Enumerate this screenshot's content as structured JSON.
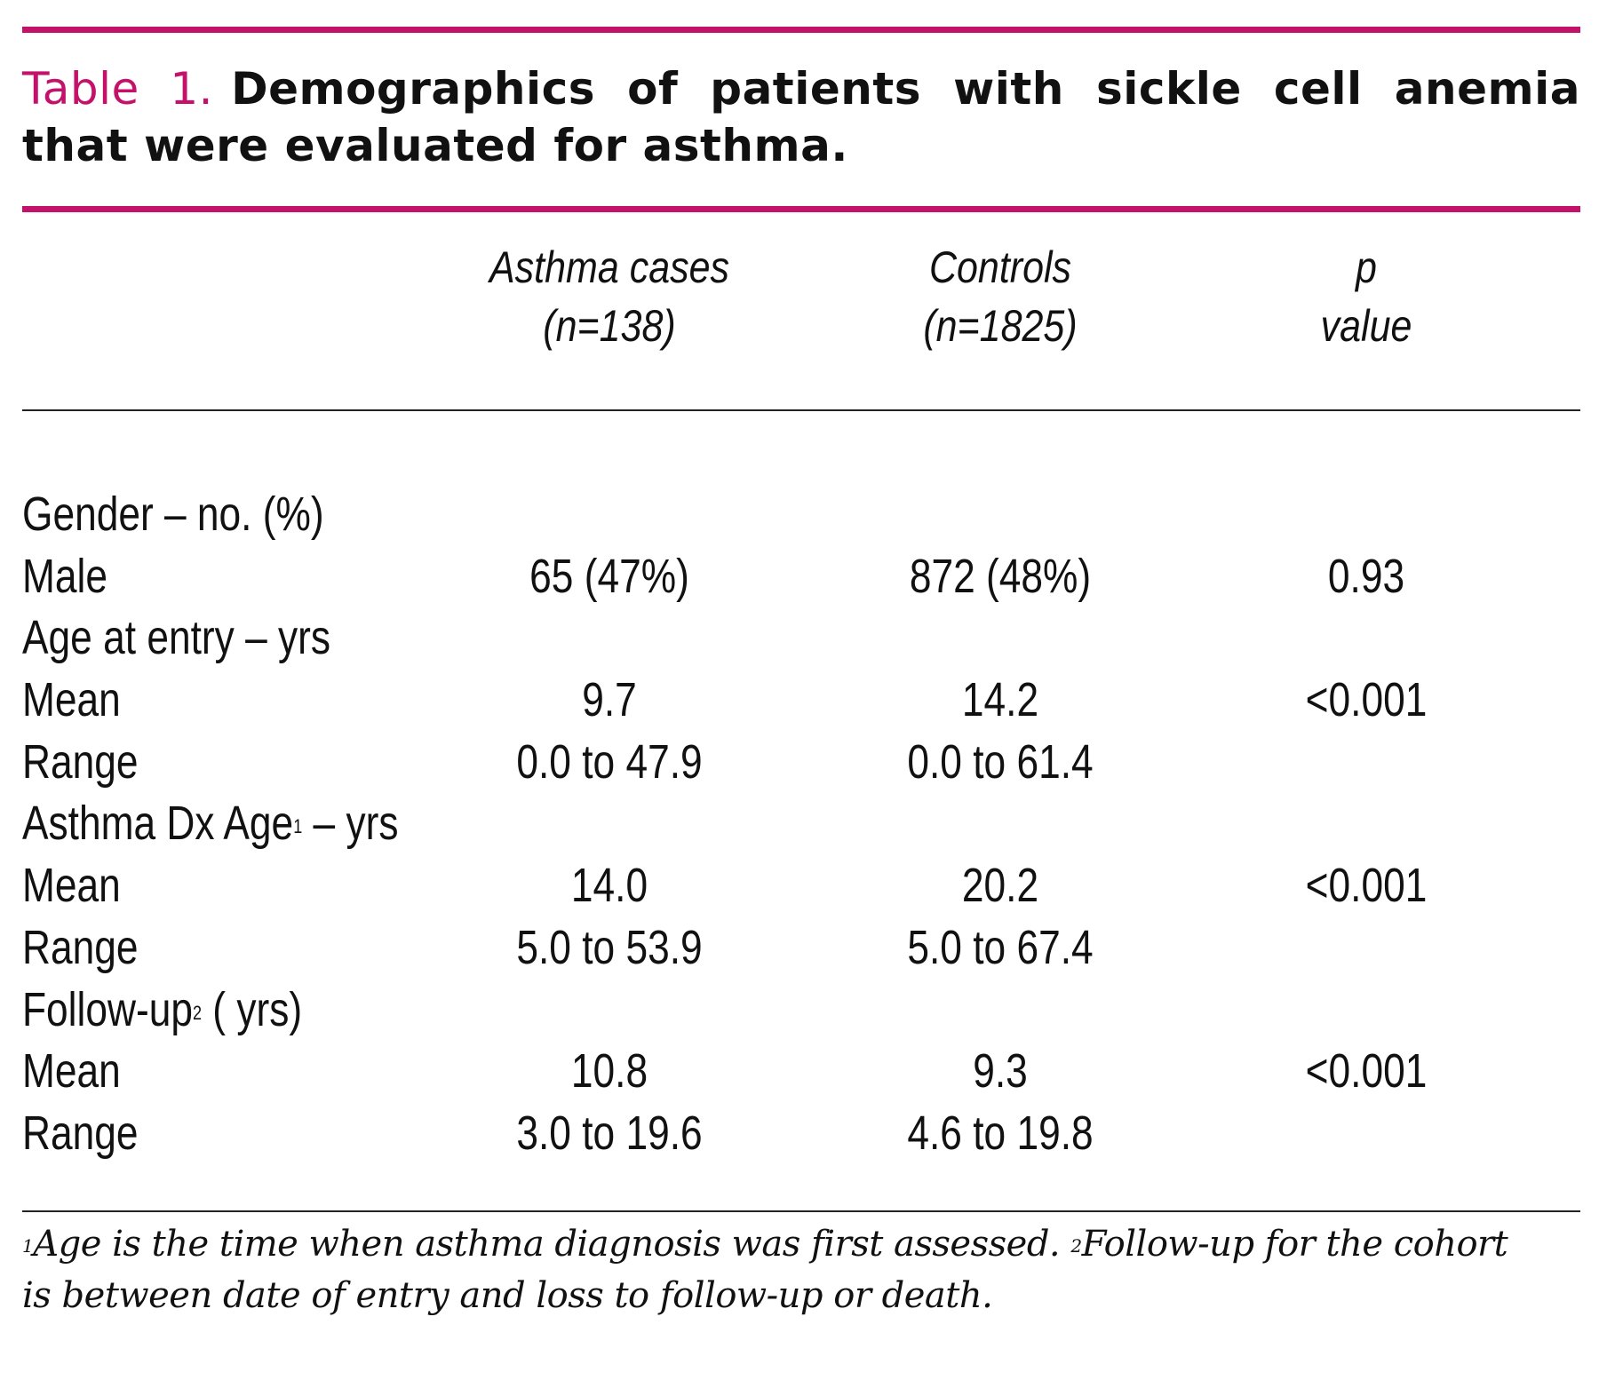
{
  "caption": {
    "label": "Table 1.",
    "title": "Demographics of patients with sickle cell anemia that were evaluated for asthma."
  },
  "columns": {
    "asthma": {
      "name": "Asthma cases",
      "n": "(n=138)"
    },
    "controls": {
      "name": "Controls",
      "n": "(n=1825)"
    },
    "p": {
      "name": "p",
      "sub": "value"
    }
  },
  "rows": [
    {
      "label": "Gender – no. (%)",
      "sup": "",
      "suffix": "",
      "asthma": "",
      "controls": "",
      "p": ""
    },
    {
      "label": "Male",
      "sup": "",
      "suffix": "",
      "asthma": "65 (47%)",
      "controls": "872 (48%)",
      "p": "0.93"
    },
    {
      "label": "Age at entry – yrs",
      "sup": "",
      "suffix": "",
      "asthma": "",
      "controls": "",
      "p": ""
    },
    {
      "label": "Mean",
      "sup": "",
      "suffix": "",
      "asthma": "9.7",
      "controls": "14.2",
      "p": "<0.001"
    },
    {
      "label": "Range",
      "sup": "",
      "suffix": "",
      "asthma": "0.0 to 47.9",
      "controls": "0.0 to 61.4",
      "p": ""
    },
    {
      "label": "Asthma Dx Age",
      "sup": "1",
      "suffix": " – yrs",
      "asthma": "",
      "controls": "",
      "p": ""
    },
    {
      "label": "Mean",
      "sup": "",
      "suffix": "",
      "asthma": "14.0",
      "controls": "20.2",
      "p": "<0.001"
    },
    {
      "label": "Range",
      "sup": "",
      "suffix": "",
      "asthma": "5.0 to 53.9",
      "controls": "5.0 to 67.4",
      "p": ""
    },
    {
      "label": "Follow-up",
      "sup": "2",
      "suffix": " ( yrs)",
      "asthma": "",
      "controls": "",
      "p": ""
    },
    {
      "label": "Mean",
      "sup": "",
      "suffix": "",
      "asthma": "10.8",
      "controls": "9.3",
      "p": "<0.001"
    },
    {
      "label": "Range",
      "sup": "",
      "suffix": "",
      "asthma": "3.0 to 19.6",
      "controls": "4.6 to 19.8",
      "p": ""
    }
  ],
  "footnote": {
    "sup1": "1",
    "text1": "Age is the time when asthma diagnosis was first assessed. ",
    "sup2": "2",
    "text2": "Follow-up for the cohort is between date of entry and loss to follow-up or death."
  },
  "colors": {
    "accent": "#c4126b",
    "text": "#111111"
  }
}
